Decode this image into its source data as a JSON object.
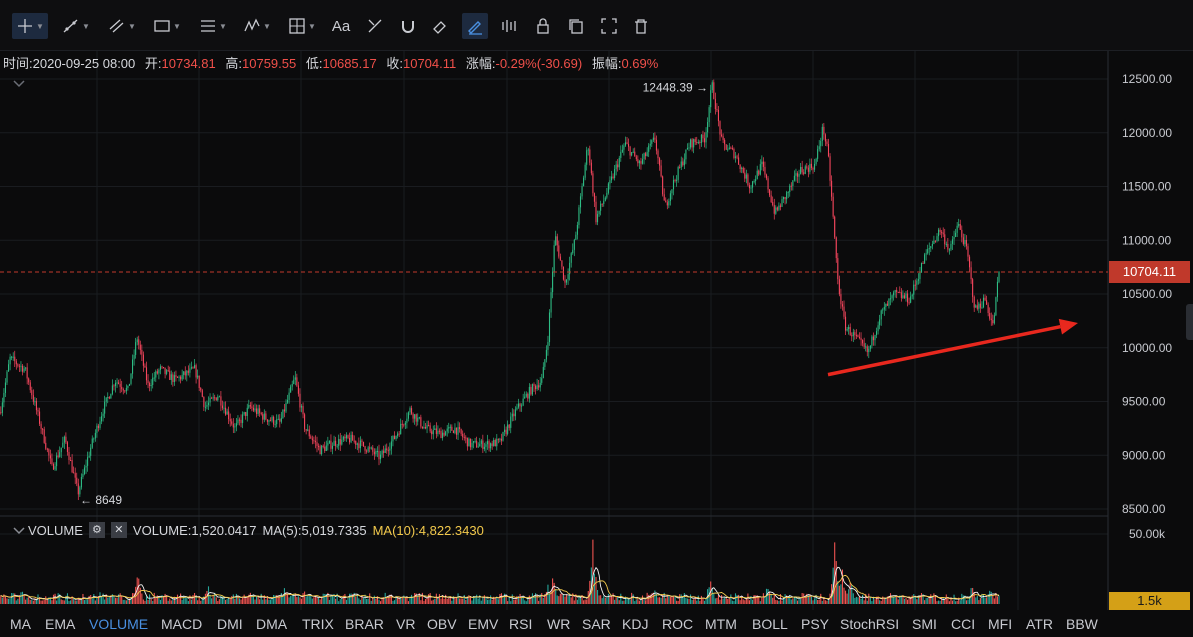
{
  "toolbar": {
    "tools": [
      {
        "icon": "crosshair-icon",
        "caret": true,
        "active": true
      },
      {
        "icon": "trend-line-icon",
        "caret": true
      },
      {
        "icon": "multi-line-icon",
        "caret": true
      },
      {
        "icon": "rectangle-icon",
        "caret": true
      },
      {
        "icon": "horizontal-lines-icon",
        "caret": true
      },
      {
        "icon": "wave-icon",
        "caret": true
      },
      {
        "icon": "measure-grid-icon",
        "caret": true
      },
      {
        "icon": "text-icon",
        "label": "Aa"
      },
      {
        "icon": "ruler-pencil-icon"
      },
      {
        "icon": "magnet-icon"
      },
      {
        "icon": "eraser-icon"
      },
      {
        "icon": "draw-mode-icon",
        "active": true
      },
      {
        "icon": "lock-all-icon"
      },
      {
        "icon": "lock-icon"
      },
      {
        "icon": "copy-icon"
      },
      {
        "icon": "screenshot-icon"
      },
      {
        "icon": "trash-icon"
      }
    ]
  },
  "info": {
    "time_label": "时间:",
    "time": "2020-09-25 08:00",
    "open_label": "开:",
    "open": "10734.81",
    "high_label": "高:",
    "high": "10759.55",
    "low_label": "低:",
    "low": "10685.17",
    "close_label": "收:",
    "close": "10704.11",
    "change_label": "涨幅:",
    "change": "-0.29%(-30.69)",
    "amp_label": "振幅:",
    "amp": "0.69%"
  },
  "volume_legend": {
    "title": "VOLUME",
    "value": "VOLUME:1,520.0417",
    "ma5": "MA(5):5,019.7335",
    "ma10": "MA(10):4,822.3430"
  },
  "indicators": [
    "MA",
    "EMA",
    "VOLUME",
    "MACD",
    "DMI",
    "DMA",
    "TRIX",
    "BRAR",
    "VR",
    "OBV",
    "EMV",
    "RSI",
    "WR",
    "SAR",
    "KDJ",
    "ROC",
    "MTM",
    "BOLL",
    "PSY",
    "StochRSI",
    "SMI",
    "CCI",
    "MFI",
    "ATR",
    "BBW"
  ],
  "active_indicator": "VOLUME",
  "colors": {
    "up": "#26a69a",
    "down": "#ef5350",
    "up_bright": "#2ebd85",
    "down_bright": "#f6465d",
    "last_price": "#c0392b",
    "arrow": "#e8281e",
    "ma5": "#f5f5f5",
    "ma10": "#f2c94c"
  },
  "chart_data": {
    "type": "candlestick",
    "price_axis": {
      "ticks": [
        "12500.00",
        "12000.00",
        "11500.00",
        "11000.00",
        "10500.00",
        "10000.00",
        "9500.00",
        "9000.00",
        "8500.00"
      ],
      "ylim": [
        8480,
        12560
      ]
    },
    "volume_axis": {
      "ticks": [
        "50.00k"
      ],
      "current_label": "1.5k"
    },
    "last_price": "10704.11",
    "annotations": {
      "high_label": "12448.39 →",
      "high_value": 12448.39,
      "low_label": "← 8649",
      "low_value": 8649
    },
    "price_path": [
      [
        0,
        9400
      ],
      [
        10,
        9900
      ],
      [
        25,
        9800
      ],
      [
        40,
        9300
      ],
      [
        52,
        8880
      ],
      [
        65,
        9150
      ],
      [
        78,
        8649
      ],
      [
        90,
        9050
      ],
      [
        102,
        9400
      ],
      [
        115,
        9700
      ],
      [
        128,
        9600
      ],
      [
        137,
        10100
      ],
      [
        148,
        9650
      ],
      [
        160,
        9800
      ],
      [
        175,
        9700
      ],
      [
        195,
        9800
      ],
      [
        205,
        9450
      ],
      [
        218,
        9560
      ],
      [
        235,
        9250
      ],
      [
        250,
        9450
      ],
      [
        265,
        9350
      ],
      [
        280,
        9300
      ],
      [
        295,
        9720
      ],
      [
        305,
        9250
      ],
      [
        320,
        9050
      ],
      [
        335,
        9120
      ],
      [
        350,
        9150
      ],
      [
        365,
        9080
      ],
      [
        380,
        8980
      ],
      [
        395,
        9170
      ],
      [
        410,
        9420
      ],
      [
        425,
        9250
      ],
      [
        440,
        9200
      ],
      [
        455,
        9250
      ],
      [
        470,
        9100
      ],
      [
        485,
        9100
      ],
      [
        500,
        9120
      ],
      [
        515,
        9400
      ],
      [
        530,
        9600
      ],
      [
        542,
        9700
      ],
      [
        548,
        10100
      ],
      [
        555,
        11050
      ],
      [
        565,
        10600
      ],
      [
        575,
        11000
      ],
      [
        588,
        11900
      ],
      [
        596,
        11200
      ],
      [
        605,
        11400
      ],
      [
        625,
        11900
      ],
      [
        640,
        11700
      ],
      [
        655,
        11950
      ],
      [
        665,
        11300
      ],
      [
        672,
        11500
      ],
      [
        690,
        11900
      ],
      [
        705,
        11950
      ],
      [
        712,
        12448
      ],
      [
        722,
        11900
      ],
      [
        735,
        11800
      ],
      [
        750,
        11500
      ],
      [
        762,
        11700
      ],
      [
        775,
        11250
      ],
      [
        785,
        11400
      ],
      [
        800,
        11650
      ],
      [
        815,
        11700
      ],
      [
        823,
        12050
      ],
      [
        828,
        11800
      ],
      [
        832,
        11350
      ],
      [
        838,
        10600
      ],
      [
        845,
        10200
      ],
      [
        855,
        10100
      ],
      [
        868,
        9950
      ],
      [
        880,
        10300
      ],
      [
        895,
        10500
      ],
      [
        910,
        10450
      ],
      [
        925,
        10850
      ],
      [
        940,
        11100
      ],
      [
        950,
        10900
      ],
      [
        958,
        11150
      ],
      [
        967,
        10900
      ],
      [
        975,
        10350
      ],
      [
        985,
        10450
      ],
      [
        993,
        10200
      ],
      [
        999,
        10710
      ]
    ],
    "volume_spikes": [
      [
        22,
        0.22
      ],
      [
        100,
        0.18
      ],
      [
        138,
        0.45
      ],
      [
        208,
        0.28
      ],
      [
        285,
        0.25
      ],
      [
        305,
        0.22
      ],
      [
        415,
        0.2
      ],
      [
        548,
        0.32
      ],
      [
        553,
        0.45
      ],
      [
        593,
        0.95
      ],
      [
        655,
        0.28
      ],
      [
        710,
        0.38
      ],
      [
        768,
        0.3
      ],
      [
        835,
        0.98
      ],
      [
        842,
        0.55
      ],
      [
        850,
        0.4
      ],
      [
        972,
        0.28
      ],
      [
        990,
        0.22
      ]
    ],
    "trend_arrow": {
      "from": [
        828,
        9750
      ],
      "to": [
        1078,
        10230
      ]
    }
  }
}
